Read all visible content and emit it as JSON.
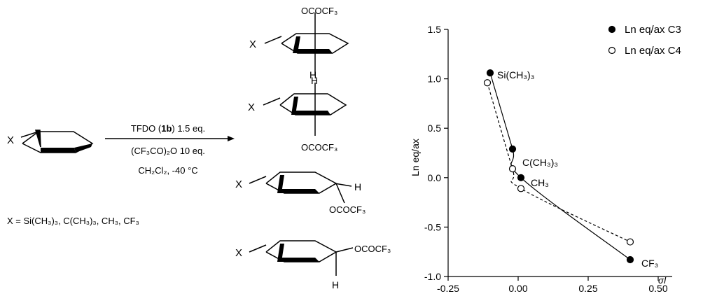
{
  "scheme": {
    "substituent_label": "X",
    "reagent_line1_pre": "TFDO (",
    "reagent_line1_bold": "1b",
    "reagent_line1_post": ") 1.5 eq.",
    "reagent_line2": "(CF₃CO)₂O 10 eq.",
    "reagent_line3": "CH₂Cl₂, -40 °C",
    "x_definition": "X = Si(CH₃)₃, C(CH₃)₃, CH₃, CF₃",
    "product_group": "OCOCF₃",
    "hydrogen": "H"
  },
  "chart_data": {
    "type": "scatter",
    "xlabel": "σI",
    "ylabel": "Ln eq/ax",
    "xlim": [
      -0.25,
      0.55
    ],
    "ylim": [
      -1.0,
      1.5
    ],
    "x_ticks": [
      "-0.25",
      "0.00",
      "0.25",
      "0.50"
    ],
    "y_ticks": [
      "-1.0",
      "-0.5",
      "0.0",
      "0.5",
      "1.0",
      "1.5"
    ],
    "grid": false,
    "legend_position": "top-right",
    "series": [
      {
        "name": "Ln eq/ax C3",
        "marker": "filled",
        "line": "solid",
        "points": [
          {
            "x": -0.1,
            "y": 1.06
          },
          {
            "x": -0.02,
            "y": 0.29
          },
          {
            "x": 0.01,
            "y": 0.0
          },
          {
            "x": 0.4,
            "y": -0.83
          }
        ]
      },
      {
        "name": "Ln eq/ax C4",
        "marker": "open",
        "line": "dashed",
        "points": [
          {
            "x": -0.11,
            "y": 0.96
          },
          {
            "x": -0.02,
            "y": 0.09
          },
          {
            "x": 0.01,
            "y": -0.11
          },
          {
            "x": 0.4,
            "y": -0.65
          }
        ]
      }
    ],
    "point_labels": [
      "Si(CH₃)₃",
      "C(CH₃)₃",
      "CH₃",
      "CF₃"
    ]
  }
}
